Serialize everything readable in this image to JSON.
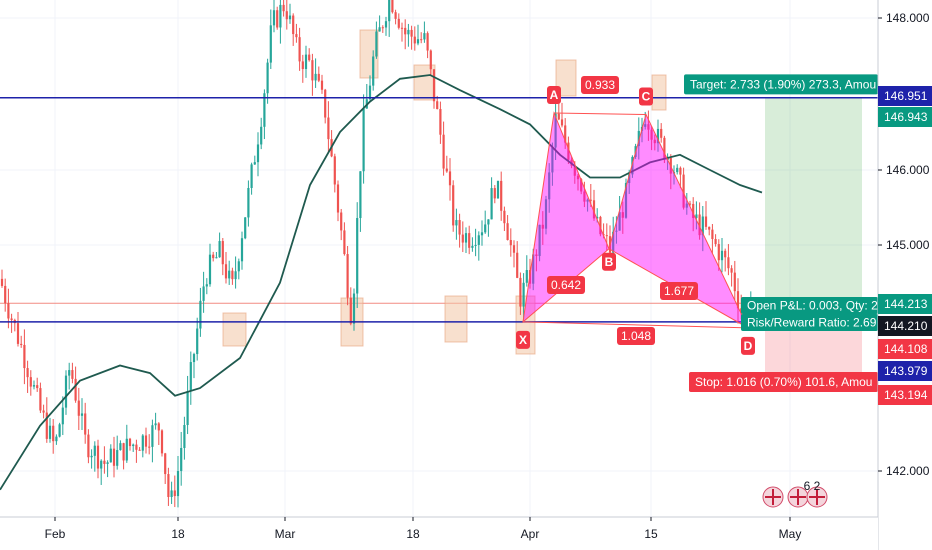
{
  "chart_data": {
    "type": "line",
    "y_axis": {
      "ticks": [
        "148.000",
        "146.000",
        "145.000",
        "142.000"
      ],
      "range": [
        141.5,
        148.35
      ]
    },
    "x_axis": {
      "labels": [
        "Feb",
        "18",
        "Mar",
        "18",
        "Apr",
        "15",
        "May"
      ]
    },
    "price_labels": [
      {
        "value": "146.951",
        "bg": "#1e22aa"
      },
      {
        "value": "146.943",
        "bg": "#089981"
      },
      {
        "value": "144.213",
        "bg": "#089981"
      },
      {
        "value": "144.210",
        "bg": "#131722"
      },
      {
        "value": "144.108",
        "bg": "#f23645"
      },
      {
        "value": "143.979",
        "bg": "#1e22aa"
      },
      {
        "value": "143.194",
        "bg": "#f23645"
      }
    ],
    "horizontal_lines": [
      146.951,
      143.979
    ],
    "harmonic_pattern": {
      "points": [
        {
          "label": "X",
          "price": 143.979
        },
        {
          "label": "A",
          "price": 146.75
        },
        {
          "label": "B",
          "price": 144.95
        },
        {
          "label": "C",
          "price": 146.73
        },
        {
          "label": "D",
          "price": 143.9
        }
      ],
      "ratios": [
        "0.933",
        "0.642",
        "1.677",
        "1.048"
      ]
    },
    "position": {
      "target_text": "Target: 2.733 (1.90%) 273.3, Amou",
      "pnl_text": "Open P&L: 0.003, Qty: 2",
      "rr_text": "Risk/Reward Ratio: 2.69",
      "stop_text": "Stop: 1.016 (0.70%) 101.6, Amou",
      "target_price": 146.943,
      "entry_price": 144.21,
      "stop_price": 143.194
    },
    "colors": {
      "up": "#26a69a",
      "down": "#ef5350",
      "pattern_fill": "#ff00ff",
      "pattern_line": "#ff5252",
      "hline": "#1e22aa",
      "ma": "#1f5a4f"
    },
    "footer_badge": "6 2"
  }
}
